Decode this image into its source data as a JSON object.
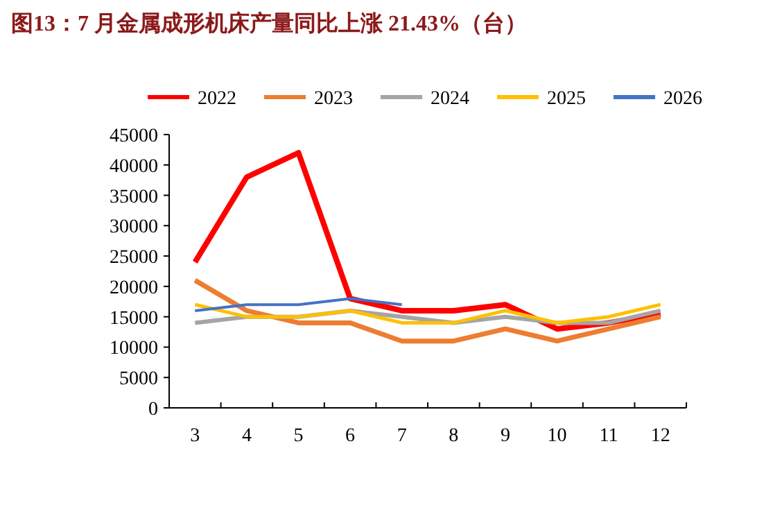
{
  "chart_data": {
    "type": "line",
    "title": "图13：7 月金属成形机床产量同比上涨 21.43%（台）",
    "categories": [
      "3",
      "4",
      "5",
      "6",
      "7",
      "8",
      "9",
      "10",
      "11",
      "12"
    ],
    "series": [
      {
        "name": "2022",
        "color": "#ff0000",
        "values": [
          24000,
          38000,
          42000,
          18000,
          16000,
          16000,
          17000,
          13000,
          14000,
          15500
        ]
      },
      {
        "name": "2023",
        "color": "#ed7d31",
        "values": [
          21000,
          16000,
          14000,
          14000,
          11000,
          11000,
          13000,
          11000,
          13000,
          15000
        ]
      },
      {
        "name": "2024",
        "color": "#a5a5a5",
        "values": [
          14000,
          15000,
          15000,
          16000,
          15000,
          14000,
          15000,
          14000,
          14000,
          16000
        ]
      },
      {
        "name": "2025",
        "color": "#ffc000",
        "values": [
          17000,
          15000,
          15000,
          16000,
          14000,
          14000,
          16000,
          14000,
          15000,
          17000
        ]
      },
      {
        "name": "2026",
        "color": "#4472c4",
        "values": [
          16000,
          17000,
          17000,
          18000,
          17000,
          null,
          null,
          null,
          null,
          null
        ]
      }
    ],
    "ylim": [
      0,
      45000
    ],
    "yticks": [
      0,
      5000,
      10000,
      15000,
      20000,
      25000,
      30000,
      35000,
      40000,
      45000
    ],
    "grid": false,
    "legend": "top",
    "marker": "none",
    "line_style": "solid"
  }
}
